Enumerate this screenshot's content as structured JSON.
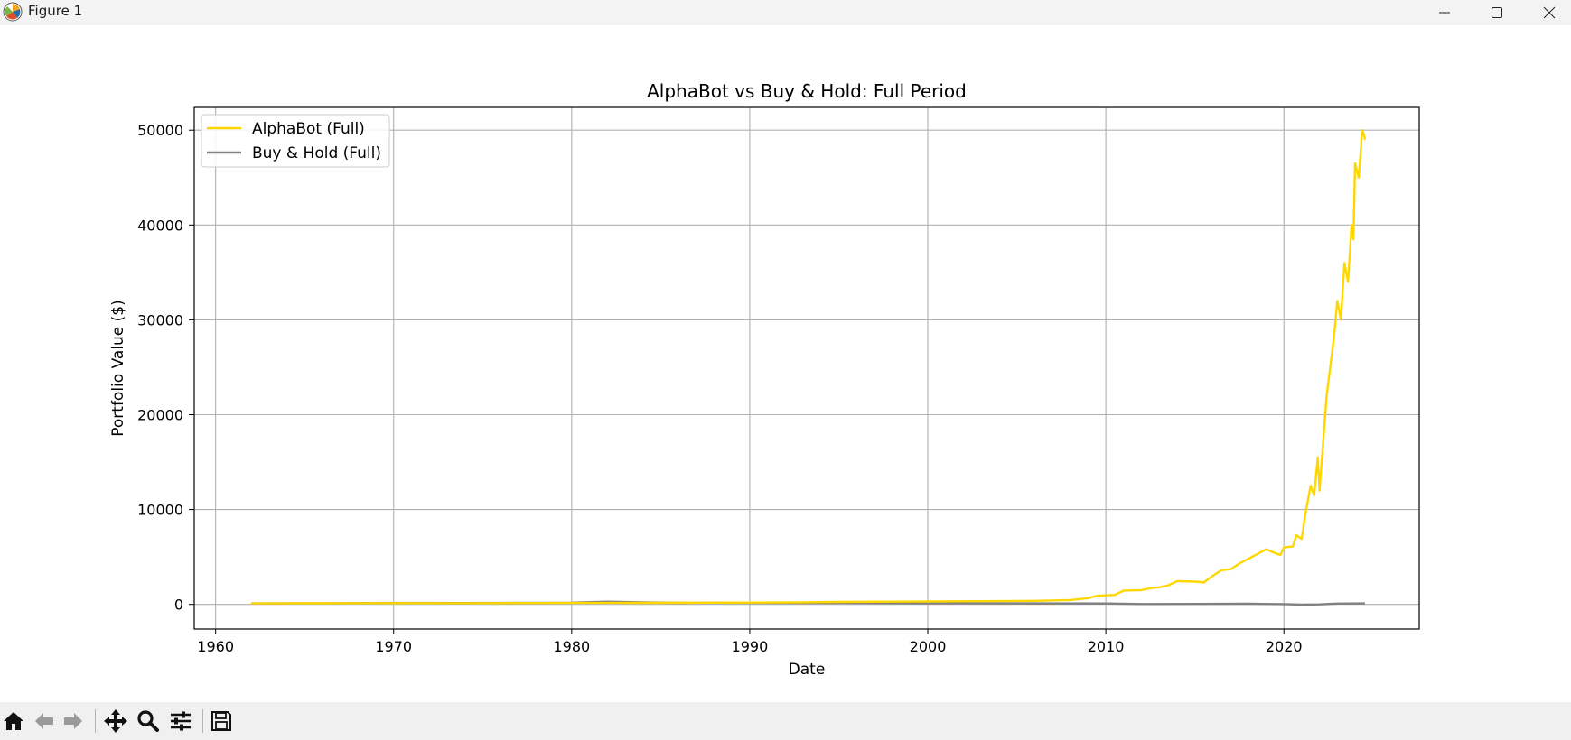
{
  "window": {
    "title": "Figure 1",
    "icons": [
      "matplotlib-icon",
      "minimize-icon",
      "maximize-icon",
      "close-icon"
    ]
  },
  "toolbar": {
    "buttons": [
      "home-icon",
      "back-arrow-icon",
      "forward-arrow-icon",
      "pan-icon",
      "zoom-icon",
      "configure-subplots-icon",
      "save-icon"
    ]
  },
  "chart_data": {
    "type": "line",
    "title": "AlphaBot vs Buy & Hold: Full Period",
    "xlabel": "Date",
    "ylabel": "Portfolio Value ($)",
    "xlim": [
      1958.8,
      2027.6
    ],
    "ylim": [
      -2600,
      52400
    ],
    "x_ticks": [
      1960,
      1970,
      1980,
      1990,
      2000,
      2010,
      2020
    ],
    "y_ticks": [
      0,
      10000,
      20000,
      30000,
      40000,
      50000
    ],
    "grid": true,
    "legend_position": "upper left",
    "series": [
      {
        "name": "AlphaBot (Full)",
        "color": "#ffd700",
        "points": [
          [
            1962,
            100
          ],
          [
            1966,
            110
          ],
          [
            1970,
            130
          ],
          [
            1974,
            120
          ],
          [
            1978,
            140
          ],
          [
            1980,
            150
          ],
          [
            1984,
            160
          ],
          [
            1988,
            180
          ],
          [
            1992,
            200
          ],
          [
            1995,
            250
          ],
          [
            1998,
            280
          ],
          [
            2000,
            300
          ],
          [
            2003,
            330
          ],
          [
            2006,
            370
          ],
          [
            2008,
            450
          ],
          [
            2009,
            650
          ],
          [
            2009.5,
            900
          ],
          [
            2010.5,
            1000
          ],
          [
            2011,
            1450
          ],
          [
            2012,
            1500
          ],
          [
            2012.5,
            1700
          ],
          [
            2013,
            1800
          ],
          [
            2013.5,
            2000
          ],
          [
            2014,
            2450
          ],
          [
            2015,
            2400
          ],
          [
            2015.5,
            2300
          ],
          [
            2016,
            3000
          ],
          [
            2016.5,
            3600
          ],
          [
            2017,
            3700
          ],
          [
            2017.5,
            4300
          ],
          [
            2018,
            4800
          ],
          [
            2018.5,
            5300
          ],
          [
            2019,
            5800
          ],
          [
            2019.5,
            5400
          ],
          [
            2019.8,
            5200
          ],
          [
            2020,
            6000
          ],
          [
            2020.5,
            6100
          ],
          [
            2020.7,
            7300
          ],
          [
            2021,
            6900
          ],
          [
            2021.2,
            9500
          ],
          [
            2021.5,
            12500
          ],
          [
            2021.7,
            11500
          ],
          [
            2021.9,
            15500
          ],
          [
            2022,
            12000
          ],
          [
            2022.2,
            17000
          ],
          [
            2022.4,
            22000
          ],
          [
            2022.6,
            25000
          ],
          [
            2022.8,
            28000
          ],
          [
            2023,
            32000
          ],
          [
            2023.2,
            30000
          ],
          [
            2023.4,
            36000
          ],
          [
            2023.6,
            34000
          ],
          [
            2023.8,
            40000
          ],
          [
            2023.9,
            38500
          ],
          [
            2024,
            46500
          ],
          [
            2024.2,
            45000
          ],
          [
            2024.3,
            47500
          ],
          [
            2024.4,
            50000
          ],
          [
            2024.5,
            49500
          ],
          [
            2024.55,
            49000
          ]
        ]
      },
      {
        "name": "Buy & Hold (Full)",
        "color": "#808080",
        "points": [
          [
            1962,
            100
          ],
          [
            1966,
            120
          ],
          [
            1970,
            150
          ],
          [
            1974,
            140
          ],
          [
            1978,
            160
          ],
          [
            1980,
            180
          ],
          [
            1982,
            280
          ],
          [
            1984,
            220
          ],
          [
            1986,
            160
          ],
          [
            1990,
            170
          ],
          [
            1995,
            150
          ],
          [
            2000,
            120
          ],
          [
            2005,
            100
          ],
          [
            2010,
            90
          ],
          [
            2012,
            40
          ],
          [
            2015,
            50
          ],
          [
            2018,
            60
          ],
          [
            2020,
            30
          ],
          [
            2021,
            -20
          ],
          [
            2022,
            0
          ],
          [
            2023,
            80
          ],
          [
            2024.55,
            100
          ]
        ]
      }
    ]
  }
}
